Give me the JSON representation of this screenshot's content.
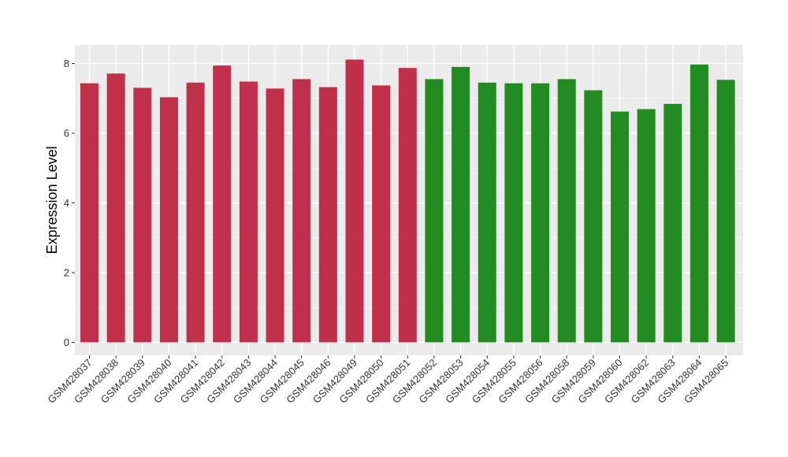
{
  "chart_data": {
    "type": "bar",
    "xlabel": "",
    "ylabel": "Expression Level",
    "ylim": [
      0,
      8.3
    ],
    "yticks": [
      0,
      2,
      4,
      6,
      8
    ],
    "grid": true,
    "background": "#ebebeb",
    "gridColor": "#ffffff",
    "categories": [
      "GSM428037",
      "GSM428038",
      "GSM428039",
      "GSM428040",
      "GSM428041",
      "GSM428042",
      "GSM428043",
      "GSM428044",
      "GSM428045",
      "GSM428046",
      "GSM428049",
      "GSM428050",
      "GSM428051",
      "GSM428052",
      "GSM428053",
      "GSM428054",
      "GSM428055",
      "GSM428056",
      "GSM428058",
      "GSM428059",
      "GSM428060",
      "GSM428062",
      "GSM428063",
      "GSM428064",
      "GSM428065"
    ],
    "values": [
      7.43,
      7.71,
      7.3,
      7.03,
      7.45,
      7.94,
      7.48,
      7.28,
      7.55,
      7.32,
      8.11,
      7.37,
      7.87,
      7.55,
      7.9,
      7.45,
      7.43,
      7.43,
      7.55,
      7.23,
      6.62,
      6.69,
      6.84,
      7.97,
      7.53
    ],
    "colors": [
      "#c0304a",
      "#c0304a",
      "#c0304a",
      "#c0304a",
      "#c0304a",
      "#c0304a",
      "#c0304a",
      "#c0304a",
      "#c0304a",
      "#c0304a",
      "#c0304a",
      "#c0304a",
      "#c0304a",
      "#228b22",
      "#228b22",
      "#228b22",
      "#228b22",
      "#228b22",
      "#228b22",
      "#228b22",
      "#228b22",
      "#228b22",
      "#228b22",
      "#228b22",
      "#228b22"
    ]
  }
}
